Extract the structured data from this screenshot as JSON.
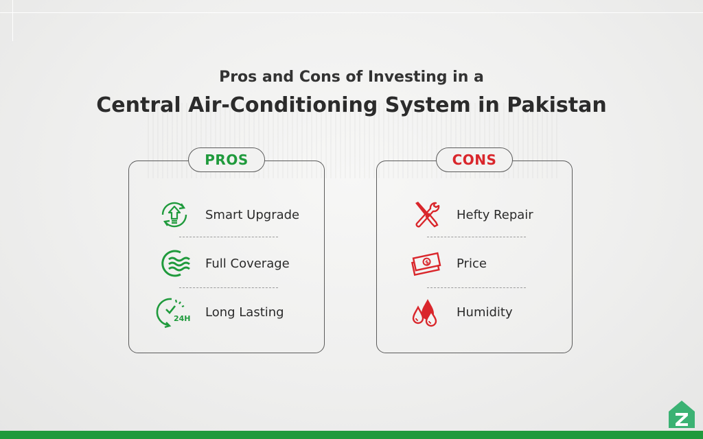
{
  "title": {
    "line1": "Pros and Cons of Investing in a",
    "line2": "Central Air-Conditioning System in Pakistan"
  },
  "pros": {
    "heading": "PROS",
    "items": [
      {
        "label": "Smart Upgrade",
        "icon": "upgrade-arrow-icon"
      },
      {
        "label": "Full Coverage",
        "icon": "airflow-waves-icon"
      },
      {
        "label": "Long Lasting",
        "icon": "24h-clock-icon"
      }
    ]
  },
  "cons": {
    "heading": "CONS",
    "items": [
      {
        "label": "Hefty Repair",
        "icon": "tools-icon"
      },
      {
        "label": "Price",
        "icon": "money-icon"
      },
      {
        "label": "Humidity",
        "icon": "water-drops-icon"
      }
    ]
  },
  "colors": {
    "pros_green": "#1f9a3c",
    "cons_red": "#d9262b",
    "border": "#5a5a5a"
  }
}
